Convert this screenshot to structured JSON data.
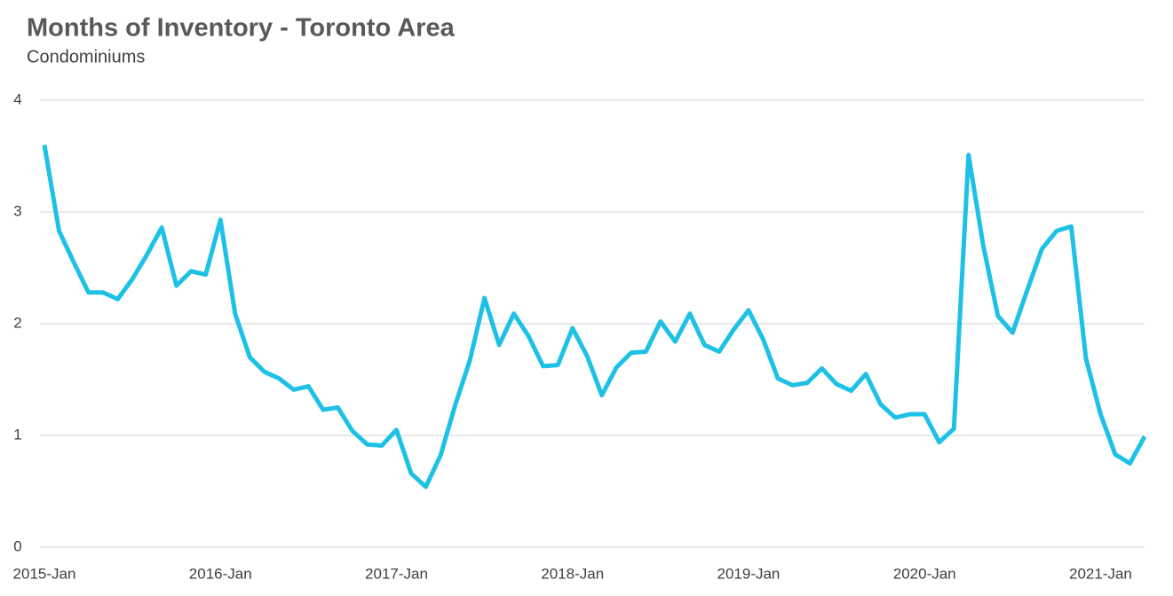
{
  "chart_data": {
    "type": "line",
    "title": "Months of Inventory - Toronto Area",
    "subtitle": "Condominiums",
    "categories": [
      "2015-Jan",
      null,
      null,
      null,
      null,
      null,
      null,
      null,
      null,
      null,
      null,
      null,
      "2016-Jan",
      null,
      null,
      null,
      null,
      null,
      null,
      null,
      null,
      null,
      null,
      null,
      "2017-Jan",
      null,
      null,
      null,
      null,
      null,
      null,
      null,
      null,
      null,
      null,
      null,
      "2018-Jan",
      null,
      null,
      null,
      null,
      null,
      null,
      null,
      null,
      null,
      null,
      null,
      "2019-Jan",
      null,
      null,
      null,
      null,
      null,
      null,
      null,
      null,
      null,
      null,
      null,
      "2020-Jan",
      null,
      null,
      null,
      null,
      null,
      null,
      null,
      null,
      null,
      null,
      null,
      "2021-Jan",
      null,
      null,
      null
    ],
    "series": [
      {
        "name": "Condominiums",
        "color": "#1ec1e6",
        "values": [
          3.6,
          2.83,
          2.55,
          2.28,
          2.28,
          2.22,
          2.4,
          2.62,
          2.86,
          2.34,
          2.47,
          2.44,
          2.93,
          2.09,
          1.7,
          1.57,
          1.51,
          1.41,
          1.44,
          1.23,
          1.25,
          1.04,
          0.92,
          0.91,
          1.05,
          0.66,
          0.54,
          0.82,
          1.27,
          1.67,
          2.23,
          1.81,
          2.09,
          1.89,
          1.62,
          1.63,
          1.96,
          1.71,
          1.36,
          1.61,
          1.74,
          1.75,
          2.02,
          1.84,
          2.09,
          1.81,
          1.75,
          1.95,
          2.12,
          1.86,
          1.51,
          1.45,
          1.47,
          1.6,
          1.46,
          1.4,
          1.55,
          1.28,
          1.16,
          1.19,
          1.19,
          0.94,
          1.06,
          3.51,
          2.7,
          2.07,
          1.92,
          2.3,
          2.67,
          2.83,
          2.87,
          1.69,
          1.19,
          0.83,
          0.75,
          0.99
        ]
      }
    ],
    "ylim": [
      0,
      4
    ],
    "yticks": [
      0,
      1,
      2,
      3,
      4
    ],
    "grid": true
  }
}
